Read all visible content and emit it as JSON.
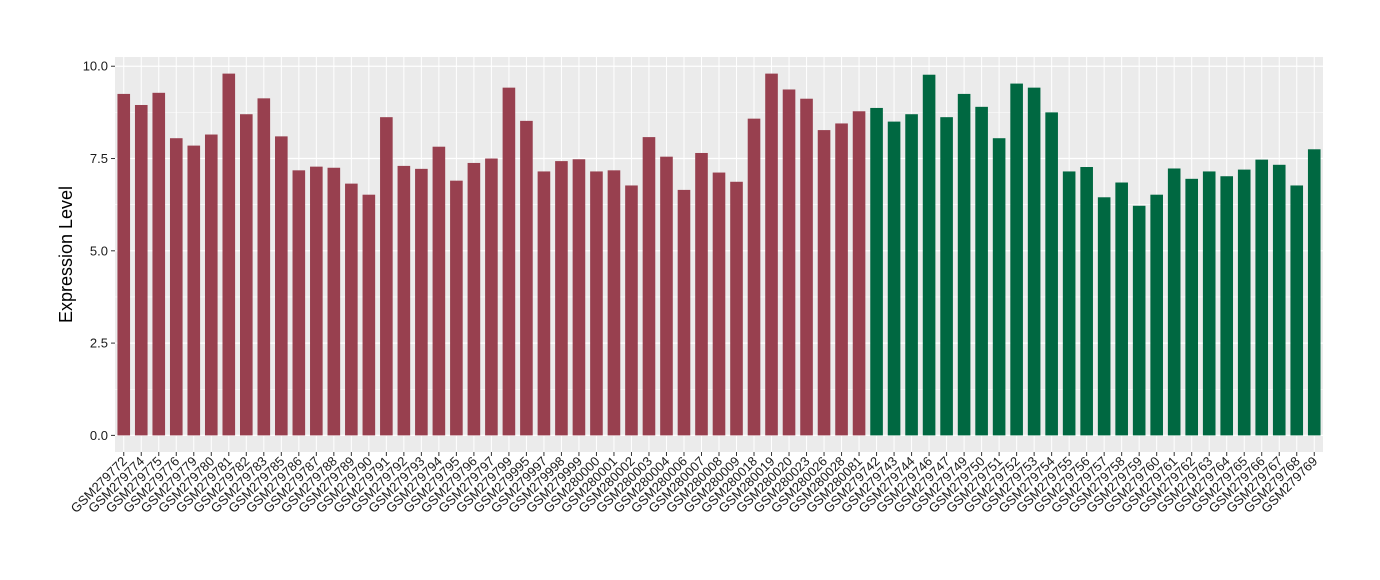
{
  "chart_data": {
    "type": "bar",
    "title": "",
    "xlabel": "",
    "ylabel": "Expression Level",
    "ylim": [
      -0.45,
      10.25
    ],
    "yticks": [
      0.0,
      2.5,
      5.0,
      7.5,
      10.0
    ],
    "ytick_labels": [
      "0.0",
      "2.5",
      "5.0",
      "7.5",
      "10.0"
    ],
    "grid": true,
    "legend": "none",
    "colors": {
      "panel_bg": "#ebebeb",
      "grid": "#ffffff",
      "group_a": "#98404f",
      "group_b": "#006841"
    },
    "categories": [
      "GSM279772",
      "GSM279774",
      "GSM279775",
      "GSM279776",
      "GSM279779",
      "GSM279780",
      "GSM279781",
      "GSM279782",
      "GSM279783",
      "GSM279785",
      "GSM279786",
      "GSM279787",
      "GSM279788",
      "GSM279789",
      "GSM279790",
      "GSM279791",
      "GSM279792",
      "GSM279793",
      "GSM279794",
      "GSM279795",
      "GSM279796",
      "GSM279797",
      "GSM279799",
      "GSM279995",
      "GSM279997",
      "GSM279998",
      "GSM279999",
      "GSM280000",
      "GSM280001",
      "GSM280002",
      "GSM280003",
      "GSM280004",
      "GSM280006",
      "GSM280007",
      "GSM280008",
      "GSM280009",
      "GSM280018",
      "GSM280019",
      "GSM280020",
      "GSM280023",
      "GSM280026",
      "GSM280028",
      "GSM280081",
      "GSM279742",
      "GSM279743",
      "GSM279744",
      "GSM279746",
      "GSM279747",
      "GSM279749",
      "GSM279750",
      "GSM279751",
      "GSM279752",
      "GSM279753",
      "GSM279754",
      "GSM279755",
      "GSM279756",
      "GSM279757",
      "GSM279758",
      "GSM279759",
      "GSM279760",
      "GSM279761",
      "GSM279762",
      "GSM279763",
      "GSM279764",
      "GSM279765",
      "GSM279766",
      "GSM279767",
      "GSM279768",
      "GSM279769"
    ],
    "values": [
      9.25,
      8.95,
      9.28,
      8.05,
      7.85,
      8.15,
      9.8,
      8.7,
      9.13,
      8.1,
      7.18,
      7.28,
      7.25,
      6.82,
      6.52,
      8.62,
      7.3,
      7.22,
      7.82,
      6.9,
      7.38,
      7.5,
      9.42,
      8.52,
      7.15,
      7.43,
      7.48,
      7.15,
      7.18,
      6.77,
      8.08,
      7.55,
      6.65,
      7.65,
      7.12,
      6.87,
      8.58,
      9.8,
      9.37,
      9.12,
      8.27,
      8.45,
      8.78,
      8.87,
      8.5,
      8.7,
      9.77,
      8.62,
      9.25,
      8.9,
      8.05,
      9.53,
      9.42,
      8.75,
      7.15,
      7.27,
      6.45,
      6.85,
      6.22,
      6.52,
      7.23,
      6.95,
      7.15,
      7.02,
      7.2,
      7.47,
      7.33,
      6.77,
      7.75
    ],
    "groups": [
      "a",
      "a",
      "a",
      "a",
      "a",
      "a",
      "a",
      "a",
      "a",
      "a",
      "a",
      "a",
      "a",
      "a",
      "a",
      "a",
      "a",
      "a",
      "a",
      "a",
      "a",
      "a",
      "a",
      "a",
      "a",
      "a",
      "a",
      "a",
      "a",
      "a",
      "a",
      "a",
      "a",
      "a",
      "a",
      "a",
      "a",
      "a",
      "a",
      "a",
      "a",
      "a",
      "a",
      "b",
      "b",
      "b",
      "b",
      "b",
      "b",
      "b",
      "b",
      "b",
      "b",
      "b",
      "b",
      "b",
      "b",
      "b",
      "b",
      "b",
      "b",
      "b",
      "b",
      "b",
      "b",
      "b",
      "b",
      "b",
      "b"
    ]
  }
}
